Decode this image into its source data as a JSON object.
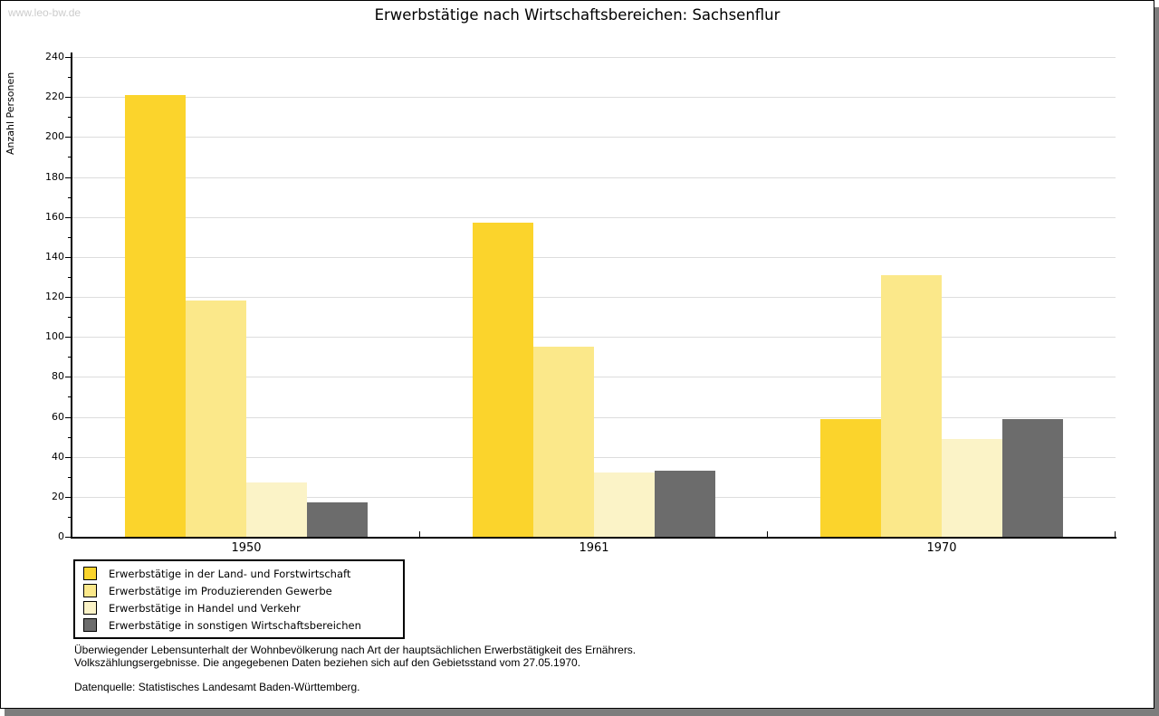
{
  "watermark": "www.leo-bw.de",
  "chart_data": {
    "type": "bar",
    "title": "Erwerbstätige nach Wirtschaftsbereichen: Sachsenflur",
    "ylabel": "Anzahl Personen",
    "xlabel": "",
    "categories": [
      "1950",
      "1961",
      "1970"
    ],
    "series": [
      {
        "name": "Erwerbstätige in der Land- und Forstwirtschaft",
        "color": "#FBD42C",
        "values": [
          221,
          157,
          59
        ]
      },
      {
        "name": "Erwerbstätige im Produzierenden Gewerbe",
        "color": "#FBE88A",
        "values": [
          118,
          95,
          131
        ]
      },
      {
        "name": "Erwerbstätige in Handel und Verkehr",
        "color": "#FBF3C7",
        "values": [
          27,
          32,
          49
        ]
      },
      {
        "name": "Erwerbstätige in sonstigen Wirtschaftsbereichen",
        "color": "#6C6C6C",
        "values": [
          17,
          33,
          59
        ]
      }
    ],
    "ylim": [
      0,
      240
    ],
    "ytick_step": 20,
    "yminor_step": 10,
    "grid": true,
    "legend_position": "bottom-left"
  },
  "footnotes": {
    "line1": "Überwiegender Lebensunterhalt der Wohnbevölkerung nach Art der hauptsächlichen Erwerbstätigkeit des Ernährers.",
    "line2": "Volkszählungsergebnisse. Die angegebenen Daten beziehen sich auf den Gebietsstand vom 27.05.1970.",
    "source": "Datenquelle: Statistisches Landesamt Baden-Württemberg."
  },
  "colors": {
    "axis": "#000000",
    "gridline": "#DDDDDD",
    "watermark": "#CCCCCC",
    "frame_shadow": "#7D7D7D"
  }
}
